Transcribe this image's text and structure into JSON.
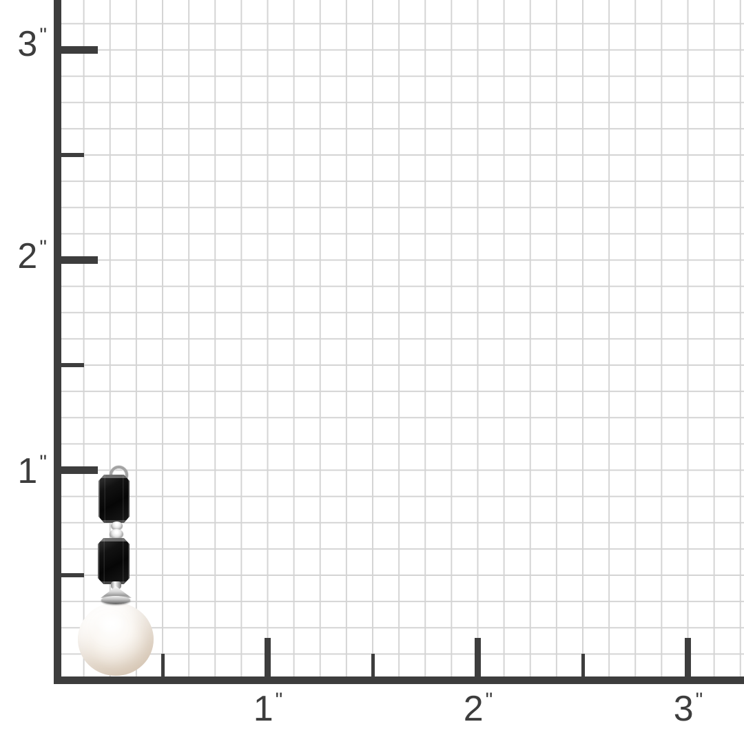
{
  "ruler": {
    "unit": "inch",
    "minor_cells_per_inch": 8,
    "y_labels": [
      {
        "value": "3",
        "mark": "\""
      },
      {
        "value": "2",
        "mark": "\""
      },
      {
        "value": "1",
        "mark": "\""
      }
    ],
    "x_labels": [
      {
        "value": "1",
        "mark": "\""
      },
      {
        "value": "2",
        "mark": "\""
      },
      {
        "value": "3",
        "mark": "\""
      }
    ]
  },
  "product": {
    "description": "Jewelry drop on inch sizing grid: silver loop, black emerald-cut bead, silver spacer beads, second black emerald-cut bead, silver bead cap, white round pearl",
    "approx_height_inches": 1.0,
    "approx_width_inches": 0.4
  },
  "colors": {
    "background": "#ffffff",
    "grid_line": "#d4d4d4",
    "axis_and_text": "#3d3d3d",
    "bead_black": "#0f0f0f",
    "metal_silver": "#c6c6c6",
    "pearl_white": "#f5efe8"
  }
}
